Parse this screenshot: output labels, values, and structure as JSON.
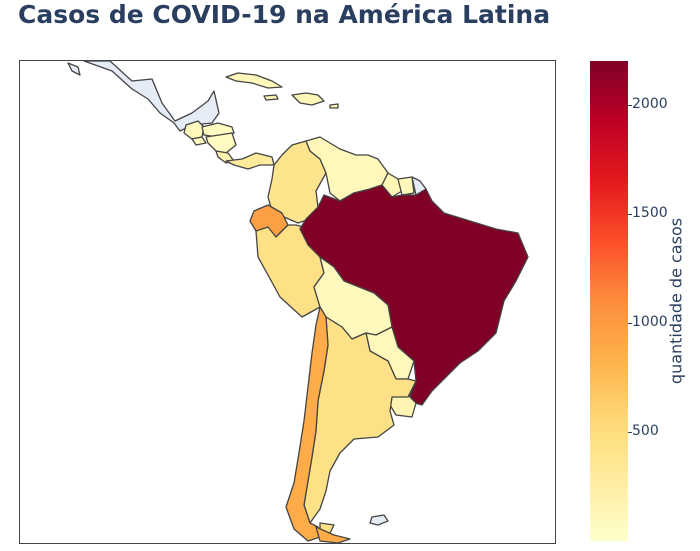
{
  "title": "Casos de COVID-19 na América Latina",
  "colorbar": {
    "title": "quantidade de casos",
    "colorscale": [
      "#ffffcc",
      "#ffeda0",
      "#fed976",
      "#feb24c",
      "#fd8d3c",
      "#fc4e2a",
      "#e31a1c",
      "#bd0026",
      "#800026"
    ],
    "range": [
      0,
      2200
    ],
    "ticks": [
      {
        "value": 500,
        "label": "500"
      },
      {
        "value": 1000,
        "label": "1000"
      },
      {
        "value": 1500,
        "label": "1500"
      },
      {
        "value": 2000,
        "label": "2000"
      }
    ]
  },
  "map": {
    "no_data_color": "#e5ecf6",
    "border_color": "#444444",
    "regions": [
      {
        "name": "Mexico",
        "status": "no-data"
      },
      {
        "name": "Guatemala",
        "level": 0.04
      },
      {
        "name": "Honduras",
        "level": 0.03
      },
      {
        "name": "El Salvador",
        "level": 0.03
      },
      {
        "name": "Nicaragua",
        "level": 0.03
      },
      {
        "name": "Costa Rica",
        "level": 0.08
      },
      {
        "name": "Panama",
        "level": 0.14
      },
      {
        "name": "Cuba",
        "level": 0.05
      },
      {
        "name": "Dominican Republic",
        "level": 0.06
      },
      {
        "name": "Colombia",
        "level": 0.18
      },
      {
        "name": "Venezuela",
        "level": 0.05
      },
      {
        "name": "Guyana",
        "level": 0.06
      },
      {
        "name": "Suriname",
        "level": 0.05
      },
      {
        "name": "French Guiana",
        "status": "no-data"
      },
      {
        "name": "Ecuador",
        "level": 0.44
      },
      {
        "name": "Peru",
        "level": 0.2
      },
      {
        "name": "Brazil",
        "level": 1.0
      },
      {
        "name": "Bolivia",
        "level": 0.04
      },
      {
        "name": "Paraguay",
        "level": 0.05
      },
      {
        "name": "Chile",
        "level": 0.4
      },
      {
        "name": "Argentina",
        "level": 0.2
      },
      {
        "name": "Uruguay",
        "level": 0.07
      }
    ]
  }
}
